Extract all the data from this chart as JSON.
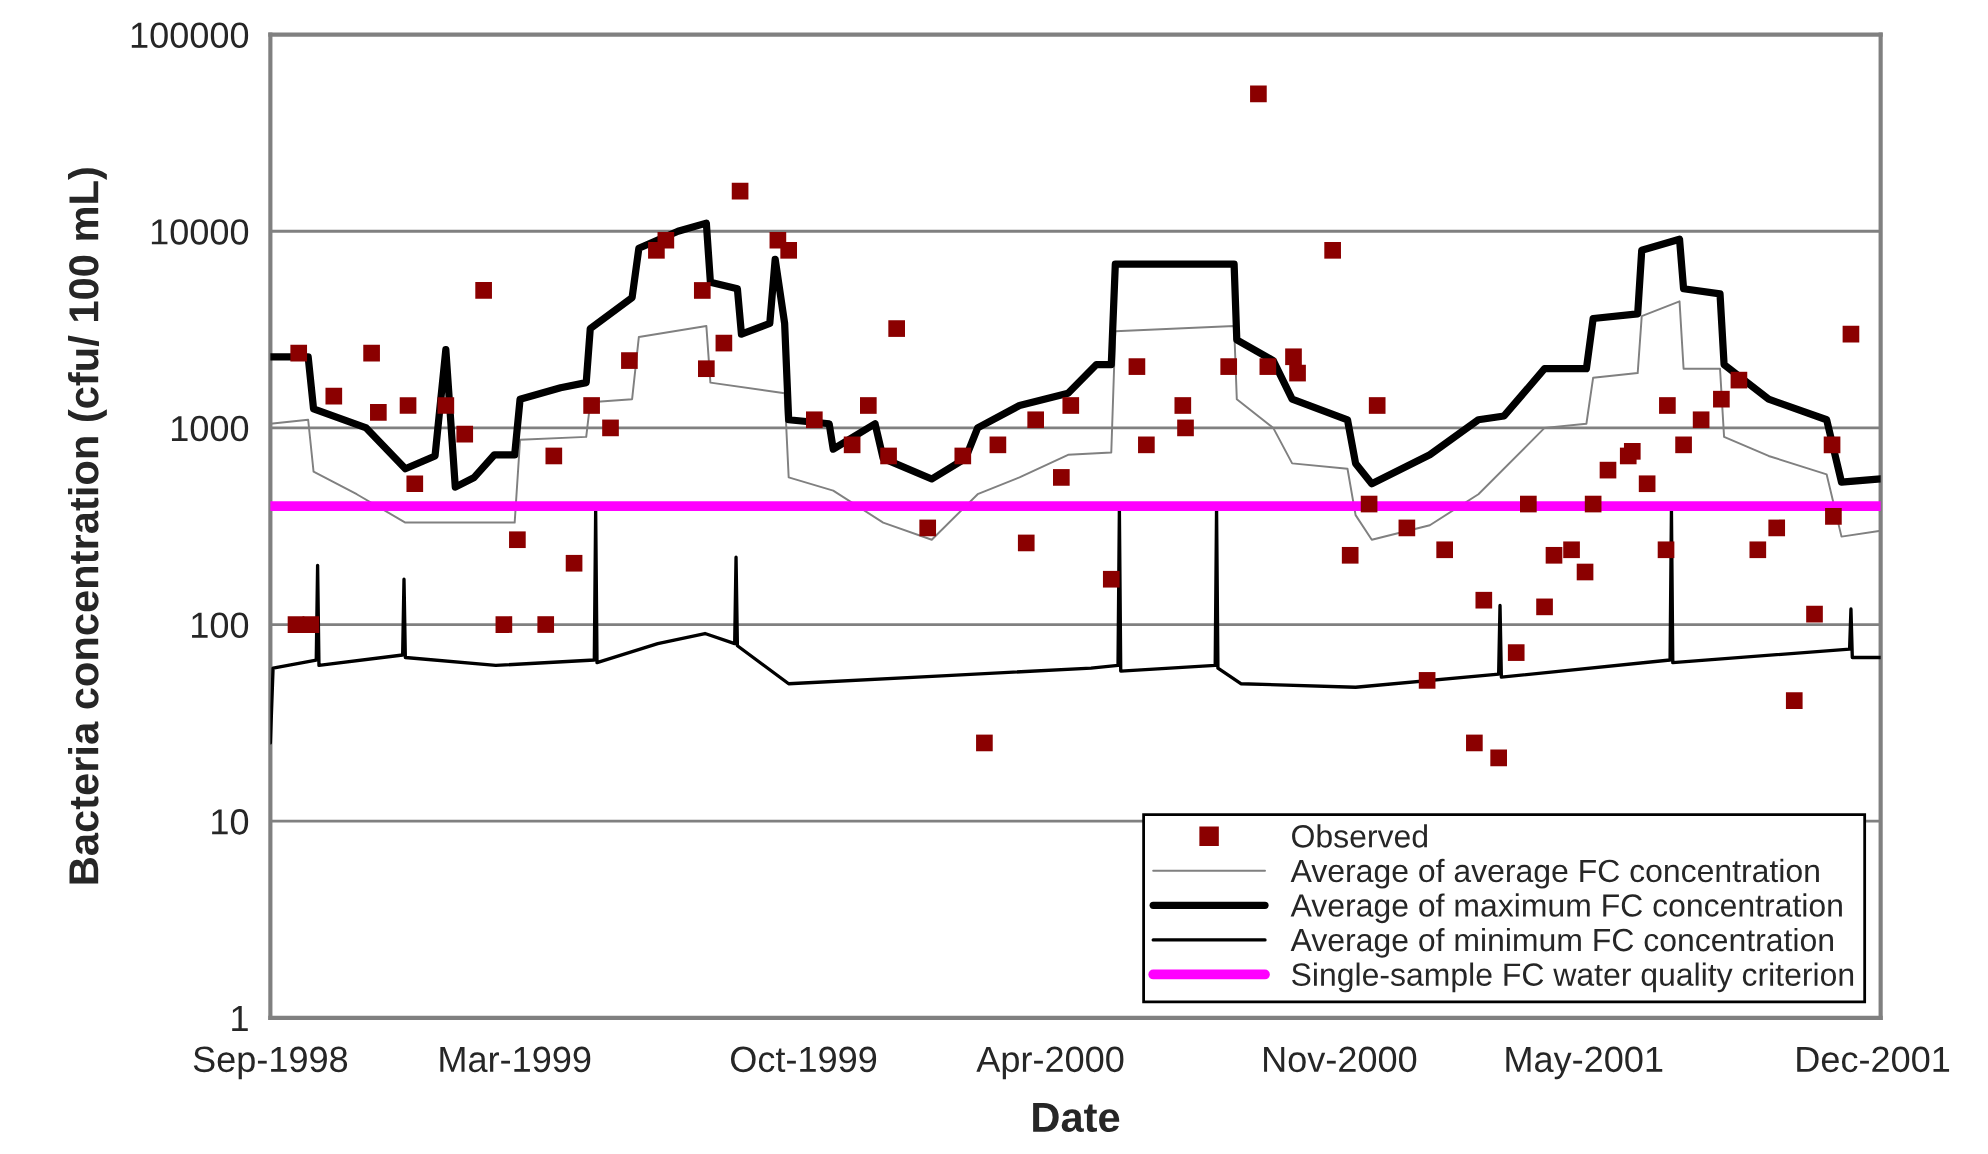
{
  "chart_data": {
    "type": "line",
    "xlabel": "Date",
    "ylabel": "Bacteria concentration (cfu/ 100 mL)",
    "log": "y",
    "ylim": [
      1,
      100000
    ],
    "yticks": [
      1,
      10,
      100,
      1000,
      10000,
      100000
    ],
    "xlim": [
      "1998-09-01",
      "2001-12-07"
    ],
    "xticks": [
      {
        "value": "1998-09-01",
        "label": "Sep-1998"
      },
      {
        "value": "1999-03-01",
        "label": "Mar-1999"
      },
      {
        "value": "1999-10-01",
        "label": "Oct-1999"
      },
      {
        "value": "2000-04-01",
        "label": "Apr-2000"
      },
      {
        "value": "2000-11-01",
        "label": "Nov-2000"
      },
      {
        "value": "2001-05-01",
        "label": "May-2001"
      },
      {
        "value": "2001-12-01",
        "label": "Dec-2001"
      }
    ],
    "grid": "y",
    "legend": "bottom right",
    "ref_lines": [
      {
        "axis": "y",
        "value": 400,
        "label": "Single-sample FC water quality criterion",
        "color": "#ff00ff",
        "line_style": "solid"
      }
    ],
    "series": [
      {
        "name": "Observed",
        "type": "scatter",
        "marker": "square",
        "color": "#8b0000",
        "x": [
          "1998-09-20",
          "1998-09-22",
          "1998-10-01",
          "1998-10-18",
          "1998-11-15",
          "1998-11-20",
          "1998-12-12",
          "1998-12-17",
          "1999-01-09",
          "1999-01-23",
          "1999-02-06",
          "1999-02-21",
          "1999-03-03",
          "1999-03-24",
          "1999-03-30",
          "1999-04-14",
          "1999-04-27",
          "1999-05-11",
          "1999-05-25",
          "1999-06-14",
          "1999-06-21",
          "1999-07-18",
          "1999-07-21",
          "1999-08-03",
          "1999-08-15",
          "1999-09-12",
          "1999-09-20",
          "1999-10-09",
          "1999-11-06",
          "1999-11-18",
          "1999-12-03",
          "1999-12-09",
          "2000-01-01",
          "2000-01-27",
          "2000-02-12",
          "2000-02-22",
          "2000-03-14",
          "2000-03-21",
          "2000-04-09",
          "2000-04-16",
          "2000-05-16",
          "2000-06-04",
          "2000-06-11",
          "2000-07-08",
          "2000-07-10",
          "2000-08-11",
          "2000-09-02",
          "2000-09-09",
          "2000-09-28",
          "2000-10-01",
          "2000-10-27",
          "2000-11-09",
          "2000-11-23",
          "2000-11-29",
          "2000-12-21",
          "2001-01-05",
          "2001-01-18",
          "2001-02-09",
          "2001-02-16",
          "2001-02-27",
          "2001-03-12",
          "2001-03-21",
          "2001-04-02",
          "2001-04-09",
          "2001-04-22",
          "2001-05-02",
          "2001-05-08",
          "2001-05-19",
          "2001-06-03",
          "2001-06-06",
          "2001-06-17",
          "2001-07-01",
          "2001-07-02",
          "2001-07-14",
          "2001-07-27",
          "2001-08-11",
          "2001-08-24",
          "2001-09-07",
          "2001-09-21",
          "2001-10-04",
          "2001-10-19",
          "2001-11-01",
          "2001-11-02",
          "2001-11-15"
        ],
        "values": [
          100,
          2400,
          100,
          1450,
          2400,
          1200,
          1300,
          520,
          1300,
          930,
          5000,
          100,
          270,
          100,
          720,
          205,
          1300,
          1000,
          2200,
          8000,
          9000,
          5000,
          2000,
          2700,
          16000,
          9000,
          8000,
          1100,
          820,
          1300,
          720,
          3200,
          310,
          720,
          25,
          820,
          260,
          1100,
          560,
          1300,
          170,
          2050,
          820,
          1300,
          1000,
          2050,
          50000,
          2050,
          2300,
          1900,
          8000,
          225,
          410,
          1300,
          310,
          52,
          240,
          25,
          133,
          21,
          72,
          410,
          123,
          225,
          240,
          185,
          410,
          610,
          720,
          760,
          520,
          240,
          1300,
          820,
          1100,
          1400,
          1750,
          240,
          310,
          41,
          113,
          820,
          355,
          3000
        ]
      },
      {
        "name": "Average of average FC concentration",
        "color": "#808080",
        "x": [
          "1998-09-01",
          "1998-09-29",
          "1998-10-03",
          "1998-11-04",
          "1998-12-10",
          "1999-03-01",
          "1999-03-05",
          "1999-04-23",
          "1999-04-26",
          "1999-05-27",
          "1999-06-01",
          "1999-07-21",
          "1999-07-24",
          "1999-09-17",
          "1999-09-20",
          "1999-10-23",
          "1999-11-29",
          "2000-01-04",
          "2000-02-07",
          "2000-03-09",
          "2000-04-14",
          "2000-05-16",
          "2000-05-19",
          "2000-08-15",
          "2000-08-17",
          "2000-09-13",
          "2000-09-27",
          "2000-11-07",
          "2000-11-13",
          "2000-11-25",
          "2001-01-07",
          "2001-02-12",
          "2001-04-02",
          "2001-05-03",
          "2001-05-08",
          "2001-06-10",
          "2001-06-13",
          "2001-07-11",
          "2001-07-14",
          "2001-08-10",
          "2001-08-13",
          "2001-09-15",
          "2001-10-28",
          "2001-11-08",
          "2001-12-07"
        ],
        "values": [
          1050,
          1100,
          600,
          460,
          330,
          330,
          870,
          900,
          1350,
          1400,
          2900,
          3300,
          1700,
          1500,
          560,
          480,
          330,
          270,
          460,
          560,
          730,
          750,
          3100,
          3300,
          1400,
          1000,
          660,
          620,
          360,
          270,
          320,
          460,
          1000,
          1050,
          1800,
          1900,
          3700,
          4400,
          2000,
          2000,
          900,
          720,
          580,
          280,
          300
        ]
      },
      {
        "name": "Average of maximum FC concentration",
        "color": "#000000",
        "x": [
          "1998-09-01",
          "1998-09-29",
          "1998-10-03",
          "1998-11-11",
          "1998-12-10",
          "1999-01-01",
          "1999-01-09",
          "1999-01-16",
          "1999-01-30",
          "1999-02-14",
          "1999-03-01",
          "1999-03-05",
          "1999-04-04",
          "1999-04-23",
          "1999-04-26",
          "1999-05-27",
          "1999-06-01",
          "1999-06-30",
          "1999-07-21",
          "1999-07-24",
          "1999-08-13",
          "1999-08-16",
          "1999-09-06",
          "1999-09-10",
          "1999-09-17",
          "1999-09-20",
          "1999-10-20",
          "1999-10-23",
          "1999-11-23",
          "1999-11-29",
          "2000-01-04",
          "2000-01-29",
          "2000-02-07",
          "2000-03-09",
          "2000-04-14",
          "2000-05-05",
          "2000-05-16",
          "2000-05-19",
          "2000-08-15",
          "2000-08-17",
          "2000-09-13",
          "2000-09-27",
          "2000-11-07",
          "2000-11-13",
          "2000-11-25",
          "2001-01-07",
          "2001-02-12",
          "2001-03-03",
          "2001-04-02",
          "2001-05-03",
          "2001-05-08",
          "2001-06-10",
          "2001-06-13",
          "2001-07-11",
          "2001-07-14",
          "2001-08-10",
          "2001-08-13",
          "2001-09-15",
          "2001-10-28",
          "2001-11-08",
          "2001-12-07"
        ],
        "values": [
          2300,
          2300,
          1250,
          1000,
          620,
          720,
          2500,
          500,
          560,
          730,
          730,
          1400,
          1600,
          1700,
          3200,
          4600,
          8200,
          10000,
          11000,
          5500,
          5100,
          3000,
          3400,
          7200,
          3400,
          1100,
          1050,
          780,
          1050,
          700,
          550,
          700,
          1000,
          1300,
          1500,
          2100,
          2100,
          6800,
          6800,
          2800,
          2200,
          1400,
          1100,
          660,
          520,
          730,
          1100,
          1150,
          2000,
          2000,
          3600,
          3800,
          8000,
          9100,
          5100,
          4800,
          2100,
          1400,
          1100,
          530,
          550
        ]
      },
      {
        "name": "Average of minimum FC concentration",
        "color": "#000000",
        "x": [
          "1998-09-01",
          "1998-09-03",
          "1998-10-05",
          "1998-10-06",
          "1998-10-07",
          "1998-12-08",
          "1998-12-09",
          "1998-12-10",
          "1999-02-15",
          "1999-04-29",
          "1999-04-30",
          "1999-05-01",
          "1999-06-15",
          "1999-07-20",
          "1999-08-11",
          "1999-08-12",
          "1999-08-13",
          "1999-09-20",
          "2000-01-15",
          "2000-05-01",
          "2000-05-21",
          "2000-05-22",
          "2000-05-23",
          "2000-08-01",
          "2000-08-02",
          "2000-08-03",
          "2000-08-20",
          "2000-11-13",
          "2001-02-27",
          "2001-02-28",
          "2001-03-01",
          "2001-07-04",
          "2001-07-05",
          "2001-07-06",
          "2001-11-14",
          "2001-11-15",
          "2001-11-16",
          "2001-12-07"
        ],
        "values": [
          25,
          60,
          66,
          200,
          62,
          70,
          170,
          68,
          62,
          66,
          380,
          64,
          80,
          90,
          80,
          220,
          78,
          50,
          55,
          60,
          62,
          380,
          58,
          62,
          390,
          60,
          50,
          48,
          56,
          125,
          54,
          66,
          380,
          64,
          75,
          120,
          68,
          68
        ]
      }
    ]
  }
}
